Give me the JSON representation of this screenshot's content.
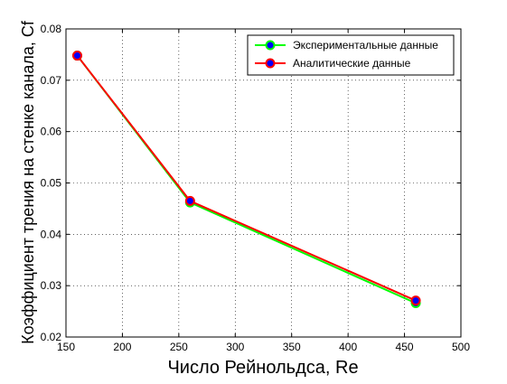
{
  "chart_data": {
    "type": "line",
    "title": "",
    "xlabel": "Число Рейнольдса, Re",
    "ylabel": "Коэффициент трения на стенке канала, Cf",
    "xlim": [
      150,
      500
    ],
    "ylim": [
      0.02,
      0.08
    ],
    "xticks": [
      "150",
      "200",
      "250",
      "300",
      "350",
      "400",
      "450",
      "500"
    ],
    "yticks": [
      "0.02",
      "0.03",
      "0.04",
      "0.05",
      "0.06",
      "0.07",
      "0.08"
    ],
    "grid": true,
    "legend_position": "top-right",
    "series": [
      {
        "name": "Экспериментальные данные",
        "x": [
          160,
          260,
          460
        ],
        "y": [
          0.0748,
          0.0462,
          0.0266
        ],
        "line_color": "#00ff00",
        "marker_face": "#0000ff",
        "marker_edge": "#00ff00"
      },
      {
        "name": "Аналитические данные",
        "x": [
          160,
          260,
          460
        ],
        "y": [
          0.0748,
          0.0465,
          0.0271
        ],
        "line_color": "#ff0000",
        "marker_face": "#0000ff",
        "marker_edge": "#ff0000"
      }
    ]
  }
}
